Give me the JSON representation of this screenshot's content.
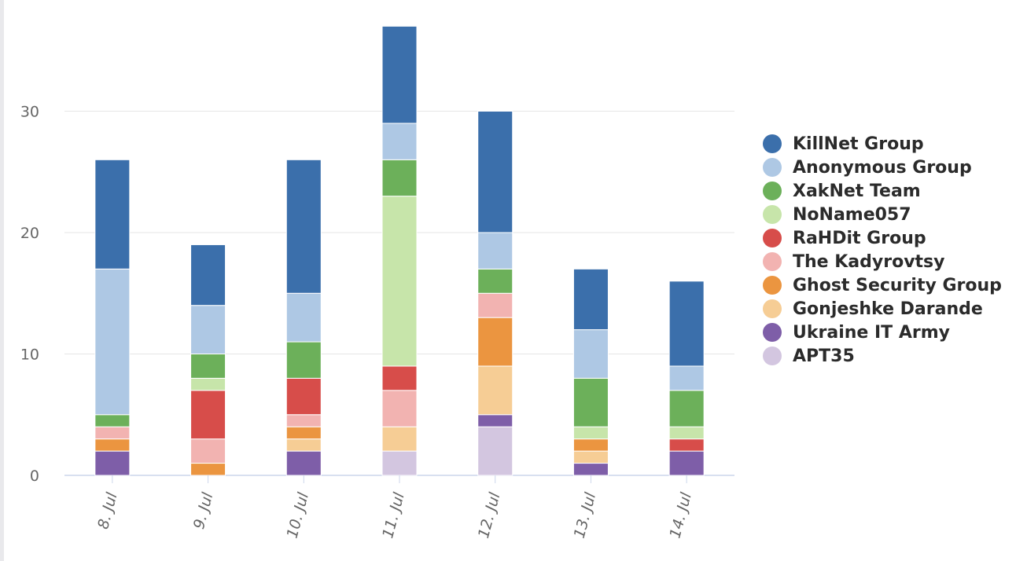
{
  "chart_data": {
    "type": "bar",
    "stacked": true,
    "categories": [
      "8. Jul",
      "9. Jul",
      "10. Jul",
      "11. Jul",
      "12. Jul",
      "13. Jul",
      "14. Jul"
    ],
    "yticks": [
      0,
      10,
      20,
      30
    ],
    "ylim": [
      0,
      37
    ],
    "grid": true,
    "legend_position": "right",
    "series": [
      {
        "name": "APT35",
        "color": "#d3c6e0",
        "values": [
          0,
          0,
          0,
          2,
          4,
          0,
          0
        ]
      },
      {
        "name": "Ukraine IT Army",
        "color": "#7e5ea8",
        "values": [
          2,
          0,
          2,
          0,
          1,
          1,
          2
        ]
      },
      {
        "name": "Gonjeshke Darande",
        "color": "#f6cd95",
        "values": [
          0,
          0,
          1,
          2,
          4,
          1,
          0
        ]
      },
      {
        "name": "Ghost Security Group",
        "color": "#eb9540",
        "values": [
          1,
          1,
          1,
          0,
          4,
          1,
          0
        ]
      },
      {
        "name": "The Kadyrovtsy",
        "color": "#f2b3b1",
        "values": [
          1,
          2,
          1,
          3,
          2,
          0,
          0
        ]
      },
      {
        "name": "RaHDit Group",
        "color": "#d74d4a",
        "values": [
          0,
          4,
          3,
          2,
          0,
          0,
          1
        ]
      },
      {
        "name": "NoName057",
        "color": "#c7e5aa",
        "values": [
          0,
          1,
          0,
          14,
          0,
          1,
          1
        ]
      },
      {
        "name": "XakNet Team",
        "color": "#6cb05a",
        "values": [
          1,
          2,
          3,
          3,
          2,
          4,
          3
        ]
      },
      {
        "name": "Anonymous Group",
        "color": "#aec8e4",
        "values": [
          12,
          4,
          4,
          3,
          3,
          4,
          2
        ]
      },
      {
        "name": "KillNet Group",
        "color": "#3b6fab",
        "values": [
          9,
          5,
          11,
          8,
          10,
          5,
          7
        ]
      }
    ],
    "legend_order": [
      "KillNet Group",
      "Anonymous Group",
      "XakNet Team",
      "NoName057",
      "RaHDit Group",
      "The Kadyrovtsy",
      "Ghost Security Group",
      "Gonjeshke Darande",
      "Ukraine IT Army",
      "APT35"
    ]
  }
}
